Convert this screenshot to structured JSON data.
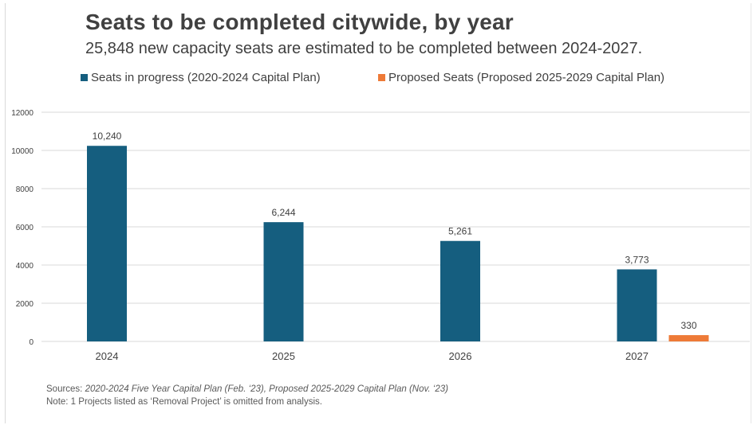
{
  "title": "Seats to be completed citywide, by year",
  "subtitle": "25,848 new capacity seats are estimated to be completed between 2024-2027.",
  "colors": {
    "series1": "#155e7f",
    "series2": "#ee7a37",
    "grid": "#d9d9d9",
    "text": "#404040"
  },
  "chart_data": {
    "type": "bar",
    "categories": [
      "2024",
      "2025",
      "2026",
      "2027"
    ],
    "series": [
      {
        "name": "Seats in progress (2020-2024 Capital Plan)",
        "values": [
          10240,
          6244,
          5261,
          3773
        ],
        "labels": [
          "10,240",
          "6,244",
          "5,261",
          "3,773"
        ]
      },
      {
        "name": "Proposed Seats (Proposed 2025-2029 Capital Plan)",
        "values": [
          null,
          null,
          null,
          330
        ],
        "labels": [
          "",
          "",
          "",
          "330"
        ]
      }
    ],
    "y_ticks": [
      "0",
      "2000",
      "4000",
      "6000",
      "8000",
      "10000",
      "12000"
    ],
    "ylim": [
      0,
      12000
    ],
    "grid": true,
    "legend": "top-left"
  },
  "footer": {
    "sources_label": "Sources:",
    "sources_text": "2020-2024 Five Year Capital Plan (Feb. ‘23), Proposed 2025-2029 Capital Plan (Nov. ‘23)",
    "note": "Note: 1 Projects listed as ‘Removal Project’ is omitted from analysis."
  }
}
